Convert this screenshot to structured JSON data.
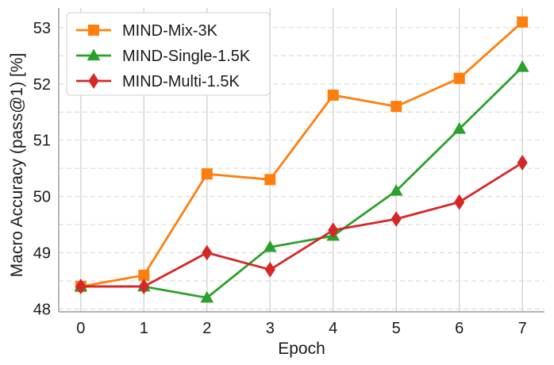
{
  "chart_data": {
    "type": "line",
    "title": "",
    "xlabel": "Epoch",
    "ylabel": "Macro Accuracy (pass@1) [%]",
    "x": [
      0,
      1,
      2,
      3,
      4,
      5,
      6,
      7
    ],
    "xlim": [
      -0.35,
      7.35
    ],
    "ylim": [
      47.95,
      53.35
    ],
    "yticks": [
      48,
      49,
      50,
      51,
      52,
      53
    ],
    "grid": true,
    "legend_position": "top-left",
    "series": [
      {
        "name": "MIND-Mix-3K",
        "color": "#ff7f0e",
        "marker": "square",
        "values": [
          48.4,
          48.6,
          50.4,
          50.3,
          51.8,
          51.6,
          52.1,
          53.1
        ]
      },
      {
        "name": "MIND-Single-1.5K",
        "color": "#2ca02c",
        "marker": "triangle",
        "values": [
          48.4,
          48.4,
          48.2,
          49.1,
          49.3,
          50.1,
          51.2,
          52.3
        ]
      },
      {
        "name": "MIND-Multi-1.5K",
        "color": "#d62728",
        "marker": "diamond",
        "values": [
          48.4,
          48.4,
          49.0,
          48.7,
          49.4,
          49.6,
          49.9,
          50.6
        ]
      }
    ]
  }
}
